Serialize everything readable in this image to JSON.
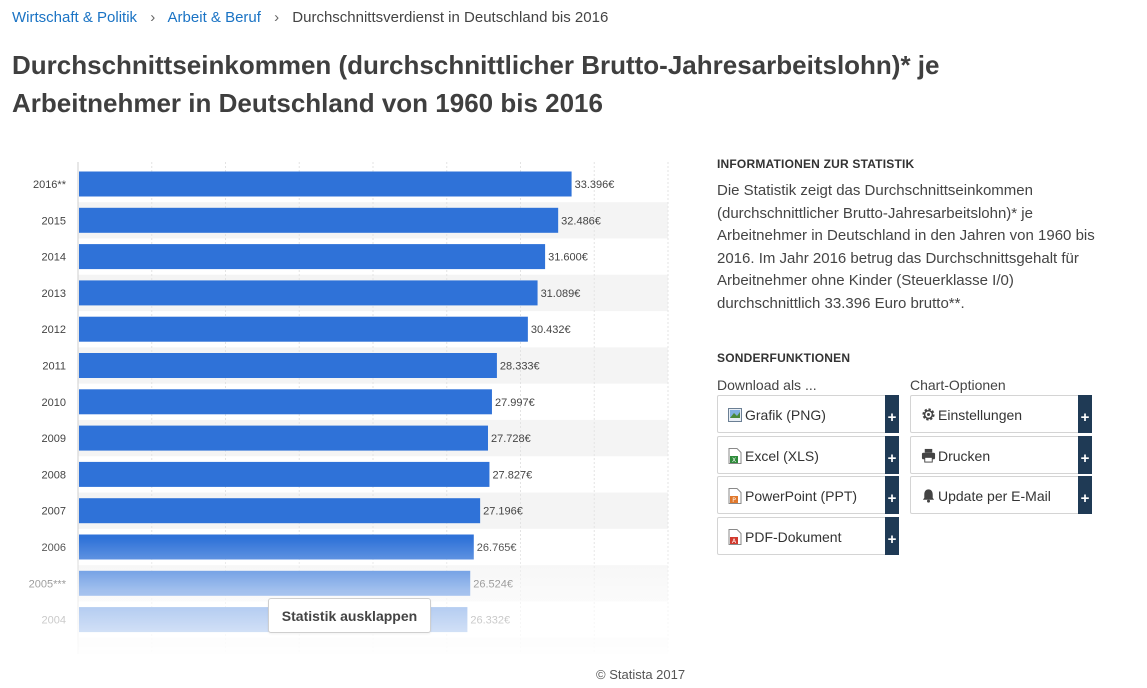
{
  "breadcrumb": {
    "items": [
      "Wirtschaft & Politik",
      "Arbeit & Beruf",
      "Durchschnittsverdienst in Deutschland bis 2016"
    ],
    "separator": "›"
  },
  "title": "Durchschnittseinkommen (durchschnittlicher Brutto-Jahresarbeitslohn)* je Arbeitnehmer in Deutschland von 1960 bis 2016",
  "chart_data": {
    "type": "bar",
    "orientation": "horizontal",
    "categories": [
      "2016**",
      "2015",
      "2014",
      "2013",
      "2012",
      "2011",
      "2010",
      "2009",
      "2008",
      "2007",
      "2006",
      "2005***",
      "2004"
    ],
    "values": [
      33396,
      32486,
      31600,
      31089,
      30432,
      28333,
      27997,
      27728,
      27827,
      27196,
      26765,
      26524,
      26332
    ],
    "value_labels": [
      "33.396€",
      "32.486€",
      "31.600€",
      "31.089€",
      "30.432€",
      "28.333€",
      "27.997€",
      "27.728€",
      "27.827€",
      "27.196€",
      "26.765€",
      "26.524€",
      "26.332€"
    ],
    "xlim": [
      0,
      40000
    ],
    "bar_color": "#2f72d8",
    "grid": true
  },
  "expand_button": "Statistik ausklappen",
  "info": {
    "heading": "INFORMATIONEN ZUR STATISTIK",
    "text": "Die Statistik zeigt das Durchschnittseinkommen (durchschnittlicher Brutto-Jahresarbeitslohn)* je Arbeitnehmer in Deutschland in den Jahren von 1960 bis 2016. Im Jahr 2016 betrug das Durchschnittsgehalt für Arbeitnehmer ohne Kinder (Steuerklasse I/0) durchschnittlich 33.396 Euro brutto**."
  },
  "sonder": {
    "heading": "SONDERFUNKTIONEN",
    "download_label": "Download als ...",
    "options_label": "Chart-Optionen",
    "plus": "+",
    "download": [
      {
        "label": "Grafik (PNG)",
        "icon": "image-icon"
      },
      {
        "label": "Excel (XLS)",
        "icon": "excel-file-icon"
      },
      {
        "label": "PowerPoint (PPT)",
        "icon": "powerpoint-file-icon"
      },
      {
        "label": "PDF-Dokument",
        "icon": "pdf-file-icon"
      }
    ],
    "options": [
      {
        "label": "Einstellungen",
        "icon": "gear-icon"
      },
      {
        "label": "Drucken",
        "icon": "printer-icon"
      },
      {
        "label": "Update per E-Mail",
        "icon": "bell-icon"
      }
    ]
  },
  "footer": "© Statista 2017"
}
